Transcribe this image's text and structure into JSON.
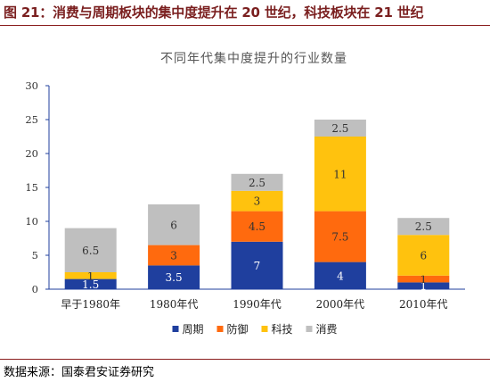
{
  "figure": {
    "title": "图 21：消费与周期板块的集中度提升在 20 世纪，科技板块在 21 世纪",
    "source": "数据来源：国泰君安证券研究"
  },
  "chart_data": {
    "type": "bar",
    "stacked": true,
    "title": "不同年代集中度提升的行业数量",
    "categories": [
      "早于1980年",
      "1980年代",
      "1990年代",
      "2000年代",
      "2010年代"
    ],
    "series": [
      {
        "name": "周期",
        "color": "#1f3f9e",
        "label_color": "#ffffff",
        "values": [
          1.5,
          3.5,
          7,
          4,
          1
        ]
      },
      {
        "name": "防御",
        "color": "#ff6a0e",
        "label_color": "#333333",
        "values": [
          0,
          3,
          4.5,
          7.5,
          1
        ]
      },
      {
        "name": "科技",
        "color": "#ffc20e",
        "label_color": "#333333",
        "values": [
          1,
          0,
          3,
          11,
          6
        ]
      },
      {
        "name": "消费",
        "color": "#bfbfbf",
        "label_color": "#333333",
        "values": [
          6.5,
          6,
          2.5,
          2.5,
          2.5
        ]
      }
    ],
    "ylim": [
      0,
      30
    ],
    "yticks": [
      0,
      5,
      10,
      15,
      20,
      25,
      30
    ],
    "grid": false,
    "legend": "bottom"
  }
}
